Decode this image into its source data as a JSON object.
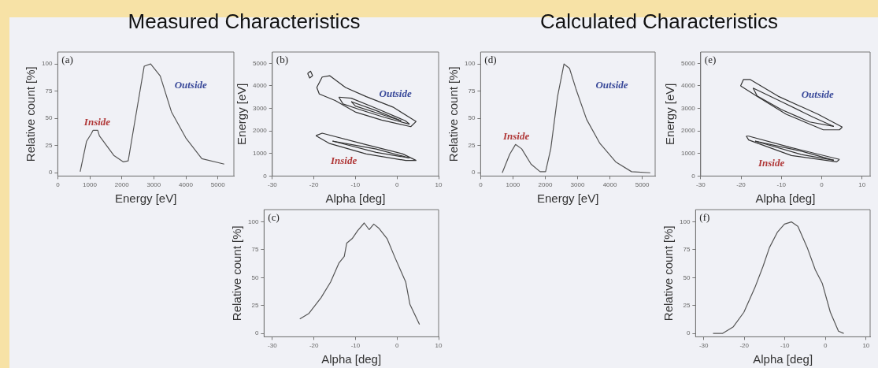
{
  "chart_data": [
    {
      "type": "line",
      "title": "Measured Characteristics",
      "xlabel": "Energy [eV]",
      "ylabel": "Relative count [%]",
      "xlim": [
        0,
        5500
      ],
      "xticks": [
        0,
        1000,
        2000,
        3000,
        4000,
        5000
      ],
      "ylim": [
        -3,
        111
      ],
      "yticks": [
        0,
        25,
        50,
        75,
        100
      ],
      "grid": false,
      "legend": false,
      "x": [
        700,
        900,
        1050,
        1100,
        1250,
        1300,
        1550,
        1750,
        2050,
        2200,
        2400,
        2700,
        2900,
        3200,
        3550,
        4000,
        4500,
        5200
      ],
      "series": [
        {
          "color": "#555555",
          "values": [
            1,
            29,
            36,
            39,
            39,
            34,
            24,
            16,
            10,
            11,
            46,
            98,
            100,
            89,
            56,
            32,
            13,
            8
          ]
        }
      ],
      "annotations": [
        "(a)",
        "Inside",
        "Outside"
      ]
    },
    {
      "type": "line",
      "xlabel": "Alpha [deg]",
      "ylabel": "Energy [eV]",
      "xlim": [
        -30,
        10
      ],
      "xticks": [
        -30,
        -20,
        -10,
        0,
        10
      ],
      "ylim": [
        0,
        5500
      ],
      "yticks": [
        0,
        1000,
        2000,
        3000,
        4000,
        5000
      ],
      "grid": false,
      "legend": false,
      "series": [
        {
          "color": "#333333",
          "x": [
            -19.3,
            -18,
            -16.2,
            -12.4,
            -7.4,
            -1,
            4.6
          ],
          "values": [
            3930,
            4390,
            4450,
            3930,
            3520,
            3060,
            2420
          ]
        },
        {
          "color": "#333333",
          "x": [
            -19.3,
            -18.7,
            -14.9,
            -9.9,
            -3.7,
            3.3,
            4.6
          ],
          "values": [
            3930,
            3640,
            3350,
            2830,
            2480,
            2190,
            2420
          ]
        },
        {
          "color": "#333333",
          "x": [
            -14,
            -11,
            -5,
            2,
            3
          ],
          "values": [
            3500,
            3450,
            3000,
            2450,
            2300
          ]
        },
        {
          "color": "#333333",
          "x": [
            -14,
            -13,
            -9,
            -3,
            3
          ],
          "values": [
            3500,
            3200,
            2950,
            2600,
            2300
          ]
        },
        {
          "color": "#333333",
          "x": [
            -11,
            -5,
            1
          ],
          "values": [
            3300,
            2900,
            2450
          ]
        },
        {
          "color": "#333333",
          "x": [
            -11,
            -10,
            -4,
            1
          ],
          "values": [
            3300,
            3100,
            2750,
            2450
          ]
        },
        {
          "color": "#333333",
          "x": [
            -21.5,
            -20.8,
            -20.3
          ],
          "values": [
            4550,
            4650,
            4450
          ]
        },
        {
          "color": "#333333",
          "x": [
            -21.5,
            -21,
            -20.3
          ],
          "values": [
            4550,
            4350,
            4450
          ]
        },
        {
          "color": "#333333",
          "x": [
            -19.5,
            -18,
            -7.4,
            1.4,
            4.6
          ],
          "values": [
            1790,
            1900,
            1390,
            980,
            690
          ]
        },
        {
          "color": "#333333",
          "x": [
            -19.5,
            -16.2,
            -7.4,
            2.1,
            4.6
          ],
          "values": [
            1790,
            1440,
            980,
            690,
            690
          ]
        },
        {
          "color": "#333333",
          "x": [
            -15.5,
            -5,
            3
          ],
          "values": [
            1550,
            1200,
            800
          ]
        },
        {
          "color": "#333333",
          "x": [
            -15.5,
            -5,
            3
          ],
          "values": [
            1550,
            1050,
            800
          ]
        }
      ],
      "annotations": [
        "(b)",
        "Inside",
        "Outside"
      ]
    },
    {
      "type": "line",
      "xlabel": "Alpha [deg]",
      "ylabel": "Relative count [%]",
      "xlim": [
        -32,
        10
      ],
      "xticks": [
        -30,
        -20,
        -10,
        0,
        10
      ],
      "ylim": [
        -3,
        111
      ],
      "yticks": [
        0,
        25,
        50,
        75,
        100
      ],
      "grid": false,
      "legend": false,
      "x": [
        -23.4,
        -21.2,
        -18.3,
        -16,
        -14,
        -12.7,
        -12.1,
        -10.8,
        -9.5,
        -7.9,
        -6.7,
        -5.6,
        -4.3,
        -2.4,
        -0.5,
        2.1,
        3.1,
        5.4
      ],
      "series": [
        {
          "color": "#555555",
          "values": [
            13,
            18,
            32,
            46,
            63,
            69,
            81,
            85,
            92,
            99,
            93,
            98,
            94,
            85,
            68,
            46,
            26,
            8
          ]
        }
      ],
      "annotations": [
        "(c)"
      ]
    },
    {
      "type": "line",
      "title": "Calculated Characteristics",
      "xlabel": "Energy [eV]",
      "ylabel": "Relative count [%]",
      "xlim": [
        0,
        5400
      ],
      "xticks": [
        0,
        1000,
        2000,
        3000,
        4000,
        5000
      ],
      "ylim": [
        -3,
        111
      ],
      "yticks": [
        0,
        25,
        50,
        75,
        100
      ],
      "grid": false,
      "legend": false,
      "x": [
        670,
        900,
        1080,
        1270,
        1560,
        1840,
        2010,
        2170,
        2380,
        2580,
        2750,
        2950,
        3280,
        3690,
        4180,
        4670,
        5250
      ],
      "series": [
        {
          "color": "#555555",
          "values": [
            0,
            17,
            26,
            22,
            8,
            1,
            1,
            22,
            70,
            100,
            96,
            77,
            49,
            27,
            10,
            1,
            0
          ]
        }
      ],
      "annotations": [
        "(d)",
        "Inside",
        "Outside"
      ]
    },
    {
      "type": "line",
      "xlabel": "Alpha [deg]",
      "ylabel": "Energy [eV]",
      "xlim": [
        -30,
        12
      ],
      "xticks": [
        -30,
        -20,
        -10,
        0,
        10
      ],
      "ylim": [
        0,
        5500
      ],
      "yticks": [
        0,
        1000,
        2000,
        3000,
        4000,
        5000
      ],
      "grid": false,
      "legend": false,
      "series": [
        {
          "color": "#333333",
          "x": [
            -20.1,
            -19.4,
            -17.7,
            -10.8,
            -0.9,
            5.1
          ],
          "values": [
            4000,
            4280,
            4280,
            3540,
            2740,
            2170
          ]
        },
        {
          "color": "#333333",
          "x": [
            -20.1,
            -16.1,
            -8.8,
            0.4,
            4.4,
            5.1
          ],
          "values": [
            4000,
            3540,
            2740,
            2050,
            2050,
            2170
          ]
        },
        {
          "color": "#333333",
          "x": [
            -17,
            -10,
            -2,
            3
          ],
          "values": [
            3900,
            3300,
            2600,
            2200
          ]
        },
        {
          "color": "#333333",
          "x": [
            -17,
            -16,
            -10,
            -3,
            3
          ],
          "values": [
            3900,
            3550,
            2950,
            2400,
            2200
          ]
        },
        {
          "color": "#333333",
          "x": [
            -18.7,
            -18.1,
            -7.5,
            4.4
          ],
          "values": [
            1770,
            1770,
            1260,
            740
          ]
        },
        {
          "color": "#333333",
          "x": [
            -18.7,
            -18.1,
            -7.5,
            3.7,
            4.4
          ],
          "values": [
            1770,
            1600,
            910,
            630,
            740
          ]
        },
        {
          "color": "#333333",
          "x": [
            -16.5,
            -5,
            3
          ],
          "values": [
            1550,
            1100,
            700
          ]
        },
        {
          "color": "#333333",
          "x": [
            -16.5,
            -5,
            3
          ],
          "values": [
            1550,
            950,
            700
          ]
        }
      ],
      "annotations": [
        "(e)",
        "Inside",
        "Outside"
      ]
    },
    {
      "type": "line",
      "xlabel": "Alpha [deg]",
      "ylabel": "Relative count [%]",
      "xlim": [
        -32,
        11
      ],
      "xticks": [
        -30,
        -20,
        -10,
        0,
        10
      ],
      "ylim": [
        -3,
        111
      ],
      "yticks": [
        0,
        25,
        50,
        75,
        100
      ],
      "grid": false,
      "legend": false,
      "x": [
        -27.7,
        -25.4,
        -22.7,
        -20.1,
        -17.4,
        -15.4,
        -13.8,
        -11.8,
        -10.1,
        -8.4,
        -6.8,
        -4.5,
        -2.5,
        -0.8,
        1.2,
        3.2,
        4.5
      ],
      "series": [
        {
          "color": "#555555",
          "values": [
            0,
            0,
            6,
            19,
            41,
            60,
            77,
            91,
            98,
            100,
            96,
            77,
            57,
            45,
            19,
            2,
            0
          ]
        }
      ],
      "annotations": [
        "(f)"
      ]
    }
  ]
}
